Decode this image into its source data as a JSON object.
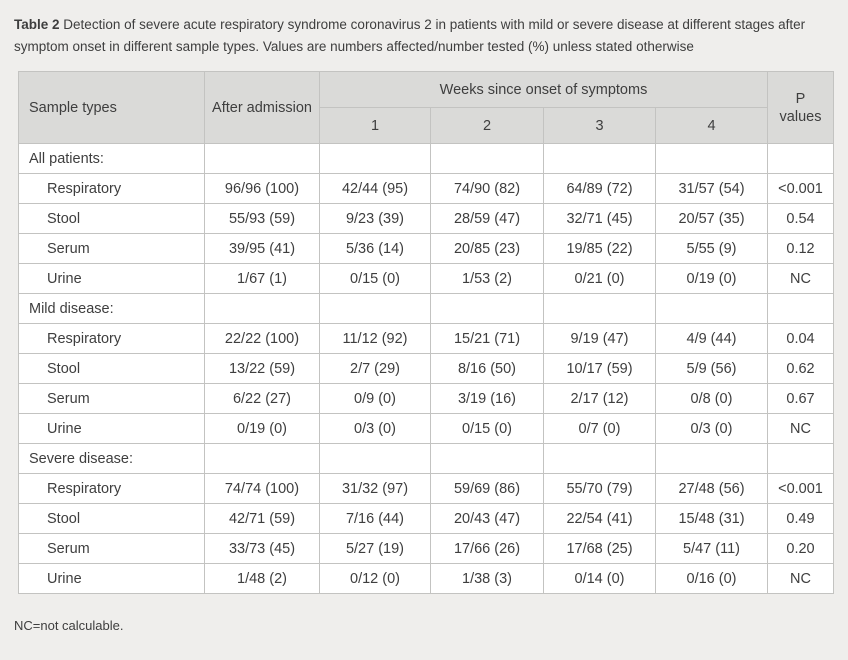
{
  "caption": {
    "label": "Table 2",
    "text": "Detection of severe acute respiratory syndrome coronavirus 2 in patients with mild or severe disease at different stages after symptom onset in different sample types. Values are numbers affected/number tested (%) unless stated otherwise"
  },
  "table": {
    "header": {
      "sample_types": "Sample types",
      "after_admission": "After admission",
      "weeks_group": "Weeks since onset of symptoms",
      "weeks": [
        "1",
        "2",
        "3",
        "4"
      ],
      "p_values": "P values"
    },
    "columns": [
      "Sample types",
      "After admission",
      "Week 1",
      "Week 2",
      "Week 3",
      "Week 4",
      "P values"
    ],
    "sections": [
      {
        "label": "All patients:",
        "rows": [
          {
            "sample": "Respiratory",
            "values": [
              "96/96 (100)",
              "42/44 (95)",
              "74/90 (82)",
              "64/89 (72)",
              "31/57 (54)",
              "<0.001"
            ]
          },
          {
            "sample": "Stool",
            "values": [
              "55/93 (59)",
              "9/23 (39)",
              "28/59 (47)",
              "32/71 (45)",
              "20/57 (35)",
              "0.54"
            ]
          },
          {
            "sample": "Serum",
            "values": [
              "39/95 (41)",
              "5/36 (14)",
              "20/85 (23)",
              "19/85 (22)",
              "5/55 (9)",
              "0.12"
            ]
          },
          {
            "sample": "Urine",
            "values": [
              "1/67 (1)",
              "0/15 (0)",
              "1/53 (2)",
              "0/21 (0)",
              "0/19 (0)",
              "NC"
            ]
          }
        ]
      },
      {
        "label": "Mild disease:",
        "rows": [
          {
            "sample": "Respiratory",
            "values": [
              "22/22 (100)",
              "11/12 (92)",
              "15/21 (71)",
              "9/19 (47)",
              "4/9 (44)",
              "0.04"
            ]
          },
          {
            "sample": "Stool",
            "values": [
              "13/22 (59)",
              "2/7 (29)",
              "8/16 (50)",
              "10/17 (59)",
              "5/9 (56)",
              "0.62"
            ]
          },
          {
            "sample": "Serum",
            "values": [
              "6/22 (27)",
              "0/9 (0)",
              "3/19 (16)",
              "2/17 (12)",
              "0/8 (0)",
              "0.67"
            ]
          },
          {
            "sample": "Urine",
            "values": [
              "0/19 (0)",
              "0/3 (0)",
              "0/15 (0)",
              "0/7 (0)",
              "0/3 (0)",
              "NC"
            ]
          }
        ]
      },
      {
        "label": "Severe disease:",
        "rows": [
          {
            "sample": "Respiratory",
            "values": [
              "74/74 (100)",
              "31/32 (97)",
              "59/69 (86)",
              "55/70 (79)",
              "27/48 (56)",
              "<0.001"
            ]
          },
          {
            "sample": "Stool",
            "values": [
              "42/71 (59)",
              "7/16 (44)",
              "20/43 (47)",
              "22/54 (41)",
              "15/48 (31)",
              "0.49"
            ]
          },
          {
            "sample": "Serum",
            "values": [
              "33/73 (45)",
              "5/27 (19)",
              "17/66 (26)",
              "17/68 (25)",
              "5/47 (11)",
              "0.20"
            ]
          },
          {
            "sample": "Urine",
            "values": [
              "1/48 (2)",
              "0/12 (0)",
              "1/38 (3)",
              "0/14 (0)",
              "0/16 (0)",
              "NC"
            ]
          }
        ]
      }
    ]
  },
  "footnote": "NC=not calculable.",
  "colors": {
    "page_bg": "#efeeec",
    "header_bg": "#dadad8",
    "border": "#c3c3c1",
    "text": "#3e3e3e"
  }
}
